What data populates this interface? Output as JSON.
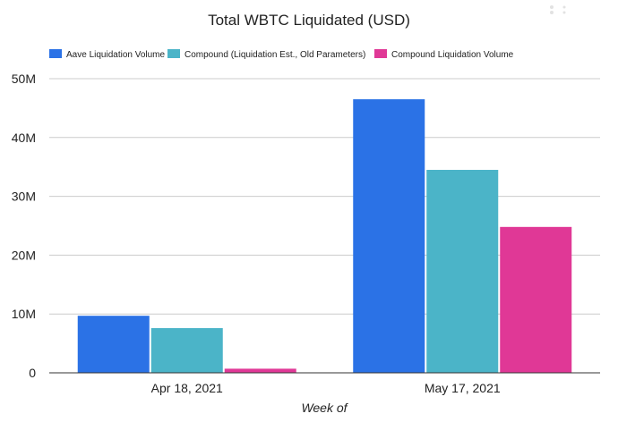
{
  "chart_data": {
    "type": "bar",
    "title": "Total WBTC Liquidated (USD)",
    "xlabel": "Week of",
    "ylabel": "",
    "categories": [
      "Apr 18, 2021",
      "May 17, 2021"
    ],
    "series": [
      {
        "name": "Aave Liquidation Volume",
        "values": [
          9.7,
          46.5
        ],
        "color": "#2b72e6"
      },
      {
        "name": "Compound (Liquidation Est., Old Parameters)",
        "values": [
          7.6,
          34.5
        ],
        "color": "#4bb4c8"
      },
      {
        "name": "Compound Liquidation Volume",
        "values": [
          0.7,
          24.8
        ],
        "color": "#e03896"
      }
    ],
    "ylim": [
      0,
      50
    ],
    "y_ticks": [
      0,
      10,
      20,
      30,
      40,
      50
    ],
    "y_tick_labels": [
      "0",
      "10M",
      "20M",
      "30M",
      "40M",
      "50M"
    ],
    "value_unit": "millions USD",
    "grid": true,
    "legend_position": "top-left"
  }
}
